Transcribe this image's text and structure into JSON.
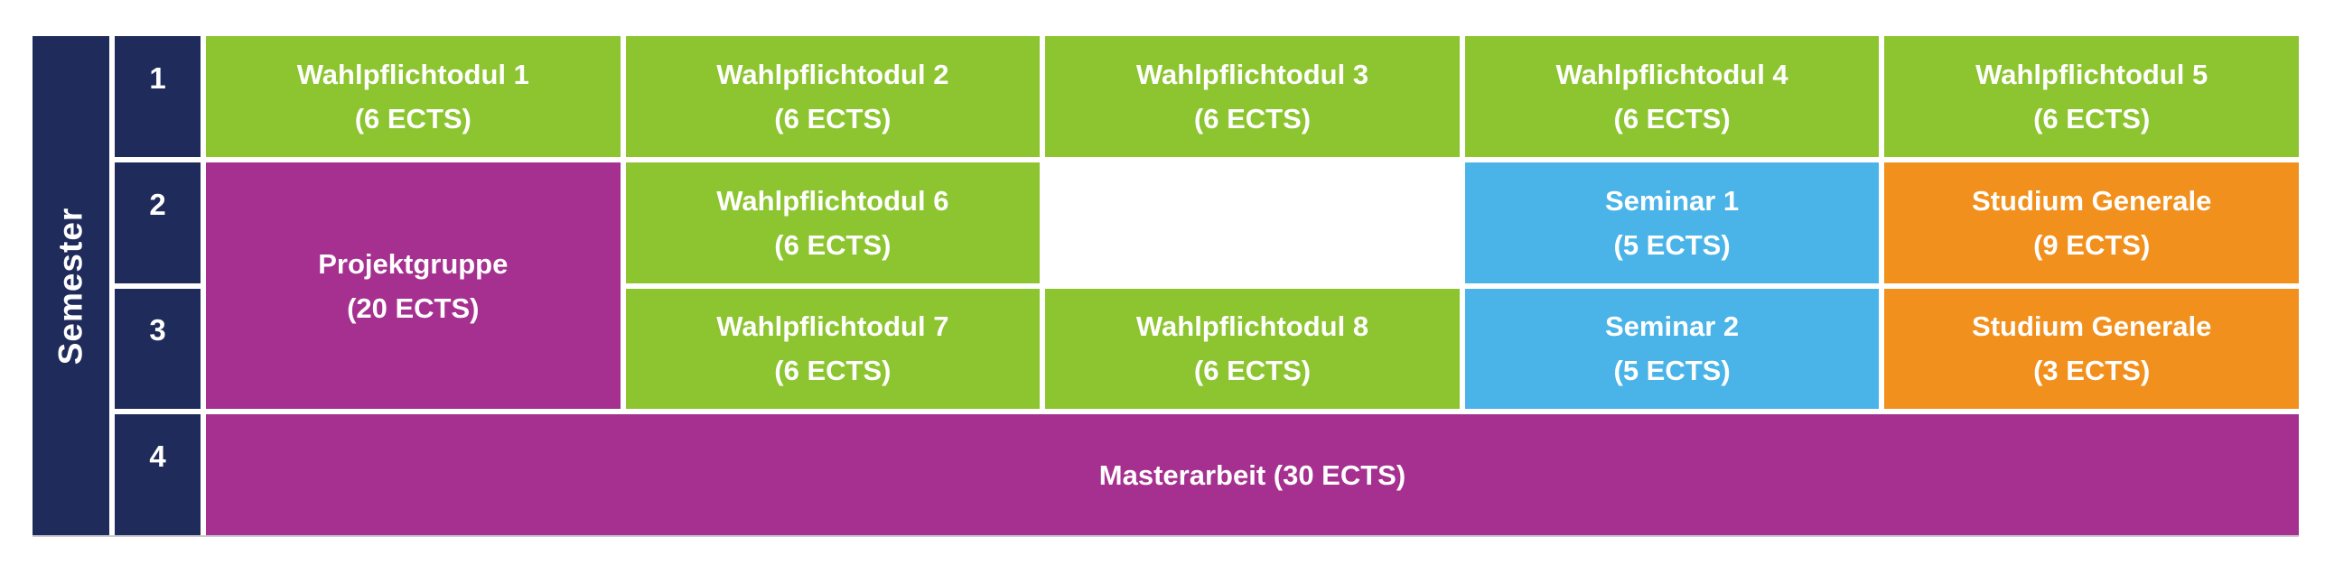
{
  "palette": {
    "navy": "#1F2B5B",
    "green": "#8CC52F",
    "purple": "#A5308F",
    "blue": "#4AB4E8",
    "orange": "#F2901D",
    "white": "#FFFFFF",
    "cell_text": "#FFFFFF"
  },
  "axis": {
    "label": "Semester",
    "semesters": [
      "1",
      "2",
      "3",
      "4"
    ]
  },
  "cells": [
    {
      "line1": "Wahlpflichtodul 1",
      "line2": "(6 ECTS)",
      "color": "green"
    },
    {
      "line1": "Wahlpflichtodul 2",
      "line2": "(6 ECTS)",
      "color": "green"
    },
    {
      "line1": "Wahlpflichtodul 3",
      "line2": "(6 ECTS)",
      "color": "green"
    },
    {
      "line1": "Wahlpflichtodul 4",
      "line2": "(6 ECTS)",
      "color": "green"
    },
    {
      "line1": "Wahlpflichtodul 5",
      "line2": "(6 ECTS)",
      "color": "green"
    },
    {
      "line1": "Projektgruppe",
      "line2": "(20 ECTS)",
      "color": "purple"
    },
    {
      "line1": "Wahlpflichtodul 6",
      "line2": "(6 ECTS)",
      "color": "green"
    },
    {
      "line1": "",
      "line2": "",
      "color": "white"
    },
    {
      "line1": "Seminar 1",
      "line2": "(5 ECTS)",
      "color": "blue"
    },
    {
      "line1": "Studium Generale",
      "line2": "(9 ECTS)",
      "color": "orange"
    },
    {
      "line1": "Wahlpflichtodul 7",
      "line2": "(6 ECTS)",
      "color": "green"
    },
    {
      "line1": "Wahlpflichtodul 8",
      "line2": "(6 ECTS)",
      "color": "green"
    },
    {
      "line1": "Seminar 2",
      "line2": "(5 ECTS)",
      "color": "blue"
    },
    {
      "line1": "Studium Generale",
      "line2": "(3 ECTS)",
      "color": "orange"
    },
    {
      "line1": "Masterarbeit (30 ECTS)",
      "line2": "",
      "color": "purple"
    }
  ]
}
